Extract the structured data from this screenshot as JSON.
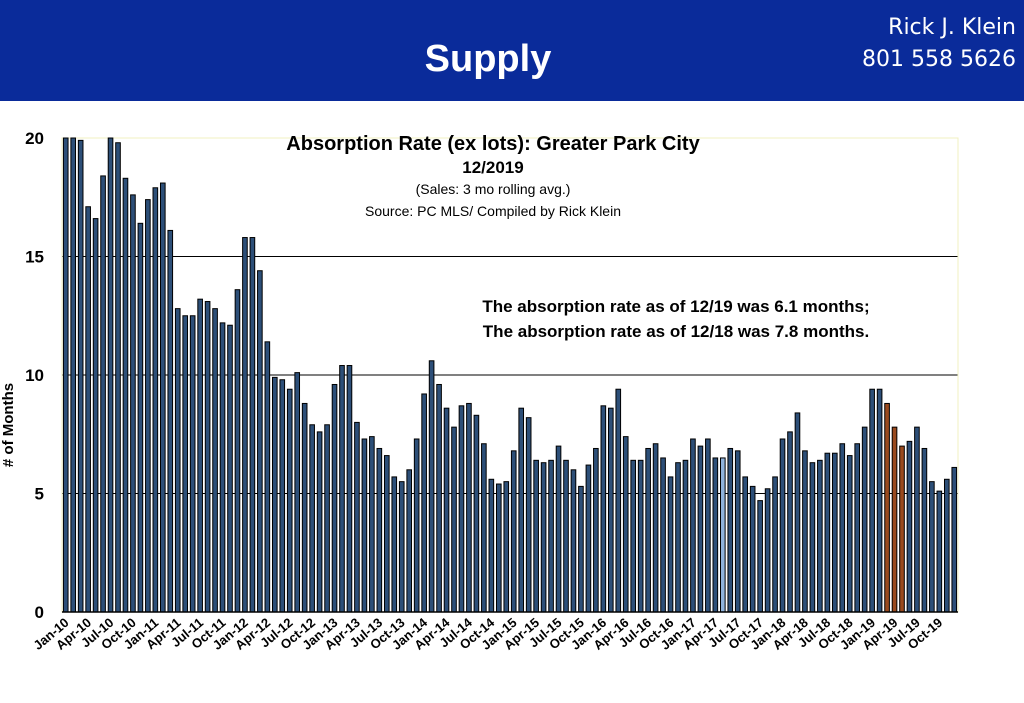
{
  "banner": {
    "title": "Supply",
    "contact_name": "Rick J. Klein",
    "contact_phone": "801 558 5626"
  },
  "colors": {
    "banner": "#0a2b9a",
    "bar_default": "#2d4f78",
    "bar_highlight_2017": "#8fb3dc",
    "bar_highlight_2018": "#9a4a1e",
    "chart_border": "#f1f0c0"
  },
  "chart_data": {
    "type": "bar",
    "title": "Absorption Rate (ex lots): Greater Park City",
    "subtitle": "12/2019",
    "note": "(Sales: 3 mo rolling avg.)",
    "source": "Source: PC MLS/ Compiled by Rick Klein",
    "annotation_line1": "The absorption rate as of 12/19 was 6.1 months;",
    "annotation_line2": "The absorption rate as of 12/18 was 7.8 months.",
    "xlabel": "",
    "ylabel": "# of Months",
    "ylim": [
      0,
      20
    ],
    "yticks": [
      0,
      5,
      10,
      15,
      20
    ],
    "grid": true,
    "start_month": "Jan-10",
    "tick_labels": [
      "Jan-10",
      "Apr-10",
      "Jul-10",
      "Oct-10",
      "Jan-11",
      "Apr-11",
      "Jul-11",
      "Oct-11",
      "Jan-12",
      "Apr-12",
      "Jul-12",
      "Oct-12",
      "Jan-13",
      "Apr-13",
      "Jul-13",
      "Oct-13",
      "Jan-14",
      "Apr-14",
      "Jul-14",
      "Oct-14",
      "Jan-15",
      "Apr-15",
      "Jul-15",
      "Oct-15",
      "Jan-16",
      "Apr-16",
      "Jul-16",
      "Oct-16",
      "Jan-17",
      "Apr-17",
      "Jul-17",
      "Oct-17",
      "Jan-18",
      "Apr-18",
      "Jul-18",
      "Oct-18",
      "Jan-19",
      "Apr-19",
      "Jul-19",
      "Oct-19"
    ],
    "highlights": [
      {
        "month": "May-17",
        "color": "#8fb3dc"
      },
      {
        "month": "Mar-19",
        "color": "#9a4a1e"
      },
      {
        "month": "Apr-19",
        "color": "#9a4a1e"
      },
      {
        "month": "May-19",
        "color": "#9a4a1e"
      }
    ],
    "values": [
      20,
      20,
      19.9,
      17.1,
      16.6,
      18.4,
      20,
      19.8,
      18.3,
      17.6,
      16.4,
      17.4,
      17.9,
      18.1,
      16.1,
      12.8,
      12.5,
      12.5,
      13.2,
      13.1,
      12.8,
      12.2,
      12.1,
      13.6,
      15.8,
      15.8,
      14.4,
      11.4,
      9.9,
      9.8,
      9.4,
      10.1,
      8.8,
      7.9,
      7.6,
      7.9,
      9.6,
      10.4,
      10.4,
      8.0,
      7.3,
      7.4,
      6.9,
      6.6,
      5.7,
      5.5,
      6.0,
      7.3,
      9.2,
      10.6,
      9.6,
      8.6,
      7.8,
      8.7,
      8.8,
      8.3,
      7.1,
      5.6,
      5.4,
      5.5,
      6.8,
      8.6,
      8.2,
      6.4,
      6.3,
      6.4,
      7.0,
      6.4,
      6.0,
      5.3,
      6.2,
      6.9,
      8.7,
      8.6,
      9.4,
      7.4,
      6.4,
      6.4,
      6.9,
      7.1,
      6.5,
      5.7,
      6.3,
      6.4,
      7.3,
      7.0,
      7.3,
      6.5,
      6.5,
      6.9,
      6.8,
      5.7,
      5.3,
      4.7,
      5.2,
      5.7,
      7.3,
      7.6,
      8.4,
      6.8,
      6.3,
      6.4,
      6.7,
      6.7,
      7.1,
      6.6,
      7.1,
      7.8,
      9.4,
      9.4,
      8.8,
      7.8,
      7.0,
      7.2,
      7.8,
      6.9,
      5.5,
      5.1,
      5.6,
      6.1
    ]
  }
}
